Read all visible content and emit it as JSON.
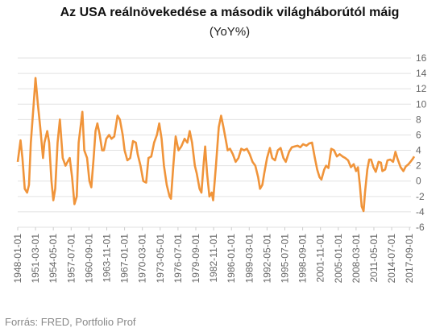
{
  "chart_data": {
    "type": "line",
    "title": "Az USA reálnövekedése a második világháborútól máig",
    "subtitle": "(YoY%)",
    "source": "Forrás: FRED, Portfolio Prof",
    "x": [
      "1948-01-01",
      "1948-07-01",
      "1948-11-01",
      "1949-04-01",
      "1949-09-01",
      "1950-01-01",
      "1950-05-01",
      "1950-11-01",
      "1951-03-01",
      "1951-08-01",
      "1952-01-01",
      "1952-07-01",
      "1952-10-01",
      "1953-04-01",
      "1953-08-01",
      "1954-01-01",
      "1954-05-01",
      "1954-09-01",
      "1955-02-01",
      "1955-07-01",
      "1956-01-01",
      "1956-07-01",
      "1957-01-01",
      "1957-04-01",
      "1957-09-01",
      "1958-02-01",
      "1958-07-01",
      "1958-11-01",
      "1959-04-01",
      "1959-07-01",
      "1959-11-01",
      "1960-05-01",
      "1960-10-01",
      "1961-02-01",
      "1961-07-01",
      "1961-11-01",
      "1962-03-01",
      "1962-08-01",
      "1963-01-01",
      "1963-05-01",
      "1963-10-01",
      "1964-04-01",
      "1964-09-01",
      "1965-03-01",
      "1965-10-01",
      "1966-03-01",
      "1966-09-01",
      "1967-01-01",
      "1967-07-01",
      "1968-01-01",
      "1968-07-01",
      "1969-01-01",
      "1969-05-01",
      "1969-11-01",
      "1970-05-01",
      "1970-11-01",
      "1971-04-01",
      "1971-10-01",
      "1972-04-01",
      "1972-10-01",
      "1973-03-01",
      "1973-08-01",
      "1974-01-01",
      "1974-07-01",
      "1975-01-01",
      "1975-04-01",
      "1975-09-01",
      "1976-02-01",
      "1976-08-01",
      "1977-02-01",
      "1977-09-01",
      "1978-03-01",
      "1978-08-01",
      "1979-01-01",
      "1979-07-01",
      "1979-11-01",
      "1980-05-01",
      "1980-09-01",
      "1981-02-01",
      "1981-05-01",
      "1981-09-01",
      "1982-02-01",
      "1982-07-01",
      "1982-10-01",
      "1983-04-01",
      "1983-10-01",
      "1984-03-01",
      "1984-08-01",
      "1985-02-01",
      "1985-05-01",
      "1985-10-01",
      "1986-04-01",
      "1986-10-01",
      "1987-04-01",
      "1987-10-01",
      "1988-04-01",
      "1988-10-01",
      "1989-04-01",
      "1989-10-01",
      "1990-04-01",
      "1990-10-01",
      "1991-02-01",
      "1991-07-01",
      "1991-11-01",
      "1992-05-01",
      "1992-11-01",
      "1993-04-01",
      "1993-10-01",
      "1994-04-01",
      "1994-10-01",
      "1995-04-01",
      "1995-09-01",
      "1996-04-01",
      "1996-10-01",
      "1997-04-01",
      "1997-10-01",
      "1998-04-01",
      "1998-10-01",
      "1999-05-01",
      "1999-11-01",
      "2000-05-01",
      "2000-11-01",
      "2001-04-01",
      "2001-09-01",
      "2002-01-01",
      "2002-07-01",
      "2002-11-01",
      "2003-04-01",
      "2003-10-01",
      "2004-04-01",
      "2004-10-01",
      "2005-04-01",
      "2005-10-01",
      "2006-04-01",
      "2006-10-01",
      "2007-04-01",
      "2007-10-01",
      "2008-03-01",
      "2008-07-01",
      "2008-11-01",
      "2009-03-01",
      "2009-07-01",
      "2009-10-01",
      "2010-03-01",
      "2010-07-01",
      "2010-11-01",
      "2011-04-01",
      "2011-09-01",
      "2012-03-01",
      "2012-08-01",
      "2012-11-01",
      "2013-05-01",
      "2013-10-01",
      "2014-04-01",
      "2014-10-01",
      "2015-03-01",
      "2015-08-01",
      "2016-02-01",
      "2016-08-01",
      "2017-01-01",
      "2017-07-01",
      "2017-11-01",
      "2018-04-01",
      "2018-07-01"
    ],
    "series": [
      {
        "name": "YoY",
        "color": "#f0943a",
        "values": [
          2.5,
          5.3,
          3,
          -1,
          -1.5,
          -0.5,
          5,
          10,
          13.4,
          10,
          7,
          3,
          5,
          6.5,
          5,
          0,
          -2.5,
          -1,
          5,
          8,
          3,
          2,
          2.7,
          3,
          0.5,
          -3,
          -2,
          5,
          7.5,
          9,
          4,
          3,
          0,
          -0.8,
          3,
          6.5,
          7.5,
          6,
          4,
          4,
          5.5,
          6,
          5.5,
          5.8,
          8.5,
          8,
          6,
          4,
          2.7,
          3,
          5.2,
          5,
          3.5,
          2,
          0,
          -0.2,
          3,
          3.2,
          5,
          6,
          7.5,
          5.5,
          2,
          -0.5,
          -2,
          -2.3,
          2,
          5.8,
          4,
          4.5,
          5.5,
          5,
          6.5,
          5,
          2,
          1,
          -1,
          -1.5,
          2.5,
          4.5,
          1,
          -2,
          -1.5,
          -2.5,
          2,
          7,
          8.5,
          7,
          5,
          4,
          4.2,
          3.5,
          2.5,
          3,
          4.2,
          4,
          4.2,
          3.5,
          2.5,
          2,
          0.5,
          -1,
          -0.5,
          1,
          3,
          4.3,
          3,
          2.7,
          4,
          4.3,
          3,
          2.5,
          3.8,
          4.4,
          4.5,
          4.6,
          4.4,
          4.8,
          4.6,
          4.9,
          5,
          3,
          1.5,
          0.5,
          0.2,
          1.5,
          2,
          1.7,
          4.2,
          4,
          3.2,
          3.5,
          3.2,
          3,
          2.7,
          1.8,
          2.2,
          1.3,
          1.8,
          -0.5,
          -3.3,
          -3.9,
          -1.5,
          1.5,
          2.8,
          2.8,
          1.8,
          1.2,
          2.5,
          2.4,
          1.3,
          1.5,
          2.7,
          2.8,
          2.5,
          3.8,
          2.8,
          1.8,
          1.3,
          1.9,
          2.2,
          2.5,
          2.9,
          3.2
        ]
      }
    ],
    "xlim": [
      "1948-01-01",
      "2018-07-01"
    ],
    "xticks": [
      "1948-01-01",
      "1951-03-01",
      "1954-05-01",
      "1957-07-01",
      "1960-09-01",
      "1963-11-01",
      "1967-01-01",
      "1970-03-01",
      "1973-05-01",
      "1976-07-01",
      "1979-09-01",
      "1982-11-01",
      "1986-01-01",
      "1989-03-01",
      "1992-05-01",
      "1995-07-01",
      "1998-09-01",
      "2001-11-01",
      "2005-01-01",
      "2008-03-01",
      "2011-05-01",
      "2014-07-01",
      "2017-09-01"
    ],
    "ylim": [
      -6,
      16
    ],
    "yticks": [
      -6,
      -4,
      -2,
      0,
      2,
      4,
      6,
      8,
      10,
      12,
      14,
      16
    ],
    "grid": true
  }
}
